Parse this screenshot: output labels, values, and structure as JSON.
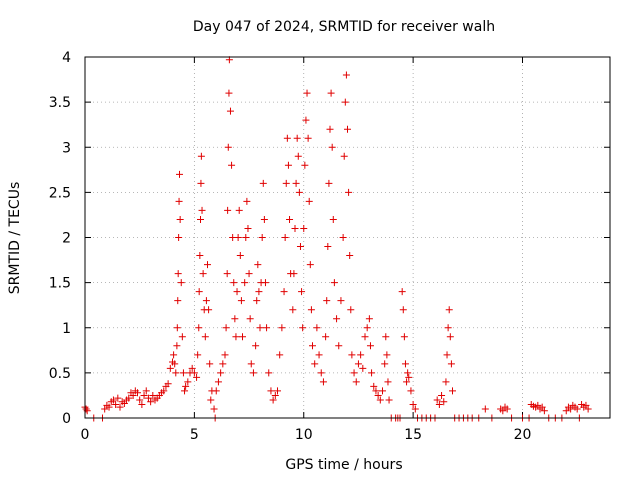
{
  "chart_data": {
    "type": "scatter",
    "title": "Day 047 of 2024, SRMTID for receiver walh",
    "xlabel": "GPS time / hours",
    "ylabel": "SRMTID / TECUs",
    "xlim": [
      0,
      24
    ],
    "ylim": [
      0,
      4
    ],
    "x_ticks": [
      0,
      5,
      10,
      15,
      20
    ],
    "x_tick_labels": [
      "0",
      "5",
      "10",
      "15",
      "20"
    ],
    "y_ticks": [
      0,
      0.5,
      1,
      1.5,
      2,
      2.5,
      3,
      3.5,
      4
    ],
    "y_tick_labels": [
      "0",
      "0.5",
      "1",
      "1.5",
      "2",
      "2.5",
      "3",
      "3.5",
      "4"
    ],
    "grid": true,
    "marker": "+",
    "series": [
      {
        "name": "SRMTID",
        "color": "#e00000",
        "points": [
          [
            0.0,
            0.12
          ],
          [
            0.05,
            0.1
          ],
          [
            0.1,
            0.08
          ],
          [
            0.4,
            0.0
          ],
          [
            0.8,
            0.0
          ],
          [
            0.9,
            0.1
          ],
          [
            1.0,
            0.14
          ],
          [
            1.1,
            0.12
          ],
          [
            1.2,
            0.18
          ],
          [
            1.3,
            0.2
          ],
          [
            1.4,
            0.15
          ],
          [
            1.5,
            0.22
          ],
          [
            1.6,
            0.12
          ],
          [
            1.7,
            0.18
          ],
          [
            1.8,
            0.16
          ],
          [
            1.9,
            0.2
          ],
          [
            2.0,
            0.22
          ],
          [
            2.1,
            0.28
          ],
          [
            2.2,
            0.25
          ],
          [
            2.3,
            0.3
          ],
          [
            2.4,
            0.28
          ],
          [
            2.5,
            0.2
          ],
          [
            2.6,
            0.15
          ],
          [
            2.7,
            0.25
          ],
          [
            2.8,
            0.3
          ],
          [
            2.9,
            0.22
          ],
          [
            3.0,
            0.18
          ],
          [
            3.1,
            0.25
          ],
          [
            3.2,
            0.2
          ],
          [
            3.3,
            0.22
          ],
          [
            3.4,
            0.25
          ],
          [
            3.5,
            0.28
          ],
          [
            3.6,
            0.3
          ],
          [
            3.7,
            0.35
          ],
          [
            3.8,
            0.38
          ],
          [
            3.9,
            0.55
          ],
          [
            4.0,
            0.62
          ],
          [
            4.05,
            0.7
          ],
          [
            4.1,
            0.6
          ],
          [
            4.15,
            0.5
          ],
          [
            4.2,
            0.8
          ],
          [
            4.22,
            1.0
          ],
          [
            4.24,
            1.3
          ],
          [
            4.26,
            1.6
          ],
          [
            4.28,
            2.0
          ],
          [
            4.3,
            2.4
          ],
          [
            4.32,
            2.7
          ],
          [
            4.35,
            2.2
          ],
          [
            4.4,
            1.5
          ],
          [
            4.45,
            0.9
          ],
          [
            4.5,
            0.5
          ],
          [
            4.55,
            0.3
          ],
          [
            4.6,
            0.35
          ],
          [
            4.7,
            0.4
          ],
          [
            4.8,
            0.5
          ],
          [
            4.9,
            0.55
          ],
          [
            5.0,
            0.5
          ],
          [
            5.1,
            0.45
          ],
          [
            5.15,
            0.7
          ],
          [
            5.2,
            1.0
          ],
          [
            5.22,
            1.4
          ],
          [
            5.25,
            1.8
          ],
          [
            5.28,
            2.2
          ],
          [
            5.3,
            2.6
          ],
          [
            5.32,
            2.9
          ],
          [
            5.35,
            2.3
          ],
          [
            5.4,
            1.6
          ],
          [
            5.45,
            1.2
          ],
          [
            5.5,
            0.9
          ],
          [
            5.55,
            1.3
          ],
          [
            5.6,
            1.7
          ],
          [
            5.65,
            1.2
          ],
          [
            5.7,
            0.6
          ],
          [
            5.75,
            0.2
          ],
          [
            5.8,
            0.3
          ],
          [
            5.9,
            0.1
          ],
          [
            5.95,
            0.0
          ],
          [
            6.0,
            0.3
          ],
          [
            6.1,
            0.4
          ],
          [
            6.2,
            0.5
          ],
          [
            6.3,
            0.6
          ],
          [
            6.4,
            0.7
          ],
          [
            6.45,
            1.0
          ],
          [
            6.5,
            1.6
          ],
          [
            6.52,
            2.3
          ],
          [
            6.55,
            3.0
          ],
          [
            6.58,
            3.6
          ],
          [
            6.6,
            3.97
          ],
          [
            6.65,
            3.4
          ],
          [
            6.7,
            2.8
          ],
          [
            6.75,
            2.0
          ],
          [
            6.8,
            1.5
          ],
          [
            6.85,
            1.1
          ],
          [
            6.9,
            0.9
          ],
          [
            6.95,
            1.4
          ],
          [
            7.0,
            2.0
          ],
          [
            7.05,
            2.3
          ],
          [
            7.1,
            1.8
          ],
          [
            7.15,
            1.3
          ],
          [
            7.2,
            0.9
          ],
          [
            7.3,
            1.5
          ],
          [
            7.35,
            2.0
          ],
          [
            7.4,
            2.4
          ],
          [
            7.45,
            2.1
          ],
          [
            7.5,
            1.6
          ],
          [
            7.55,
            1.1
          ],
          [
            7.6,
            0.6
          ],
          [
            7.7,
            0.5
          ],
          [
            7.8,
            0.8
          ],
          [
            7.85,
            1.3
          ],
          [
            7.9,
            1.7
          ],
          [
            7.95,
            1.4
          ],
          [
            8.0,
            1.0
          ],
          [
            8.05,
            1.5
          ],
          [
            8.1,
            2.0
          ],
          [
            8.15,
            2.6
          ],
          [
            8.2,
            2.2
          ],
          [
            8.25,
            1.5
          ],
          [
            8.3,
            1.0
          ],
          [
            8.4,
            0.5
          ],
          [
            8.5,
            0.3
          ],
          [
            8.6,
            0.2
          ],
          [
            8.7,
            0.25
          ],
          [
            8.8,
            0.3
          ],
          [
            8.9,
            0.7
          ],
          [
            9.0,
            1.0
          ],
          [
            9.1,
            1.4
          ],
          [
            9.15,
            2.0
          ],
          [
            9.2,
            2.6
          ],
          [
            9.25,
            3.1
          ],
          [
            9.3,
            2.8
          ],
          [
            9.35,
            2.2
          ],
          [
            9.4,
            1.6
          ],
          [
            9.5,
            1.2
          ],
          [
            9.55,
            1.6
          ],
          [
            9.6,
            2.1
          ],
          [
            9.65,
            2.6
          ],
          [
            9.7,
            3.1
          ],
          [
            9.75,
            2.9
          ],
          [
            9.8,
            2.5
          ],
          [
            9.85,
            1.9
          ],
          [
            9.9,
            1.4
          ],
          [
            9.95,
            1.0
          ],
          [
            10.0,
            2.1
          ],
          [
            10.05,
            2.8
          ],
          [
            10.1,
            3.3
          ],
          [
            10.15,
            3.6
          ],
          [
            10.2,
            3.1
          ],
          [
            10.25,
            2.4
          ],
          [
            10.3,
            1.7
          ],
          [
            10.35,
            1.2
          ],
          [
            10.4,
            0.8
          ],
          [
            10.5,
            0.6
          ],
          [
            10.6,
            1.0
          ],
          [
            10.7,
            0.7
          ],
          [
            10.8,
            0.5
          ],
          [
            10.9,
            0.4
          ],
          [
            11.0,
            0.9
          ],
          [
            11.05,
            1.3
          ],
          [
            11.1,
            1.9
          ],
          [
            11.15,
            2.6
          ],
          [
            11.2,
            3.2
          ],
          [
            11.25,
            3.6
          ],
          [
            11.3,
            3.0
          ],
          [
            11.35,
            2.2
          ],
          [
            11.4,
            1.5
          ],
          [
            11.5,
            1.1
          ],
          [
            11.6,
            0.8
          ],
          [
            11.7,
            1.3
          ],
          [
            11.8,
            2.0
          ],
          [
            11.85,
            2.9
          ],
          [
            11.9,
            3.5
          ],
          [
            11.95,
            3.8
          ],
          [
            12.0,
            3.2
          ],
          [
            12.05,
            2.5
          ],
          [
            12.1,
            1.8
          ],
          [
            12.15,
            1.2
          ],
          [
            12.2,
            0.7
          ],
          [
            12.3,
            0.5
          ],
          [
            12.4,
            0.4
          ],
          [
            12.5,
            0.6
          ],
          [
            12.6,
            0.7
          ],
          [
            12.7,
            0.55
          ],
          [
            12.8,
            0.9
          ],
          [
            12.9,
            1.0
          ],
          [
            13.0,
            1.1
          ],
          [
            13.05,
            0.8
          ],
          [
            13.1,
            0.5
          ],
          [
            13.2,
            0.35
          ],
          [
            13.3,
            0.3
          ],
          [
            13.4,
            0.25
          ],
          [
            13.5,
            0.2
          ],
          [
            13.6,
            0.3
          ],
          [
            13.7,
            0.6
          ],
          [
            13.75,
            0.9
          ],
          [
            13.8,
            0.7
          ],
          [
            13.85,
            0.4
          ],
          [
            13.9,
            0.2
          ],
          [
            14.0,
            0.0
          ],
          [
            14.2,
            0.0
          ],
          [
            14.3,
            0.0
          ],
          [
            14.4,
            0.0
          ],
          [
            14.5,
            1.4
          ],
          [
            14.55,
            1.2
          ],
          [
            14.6,
            0.9
          ],
          [
            14.65,
            0.6
          ],
          [
            14.7,
            0.4
          ],
          [
            14.75,
            0.5
          ],
          [
            14.8,
            0.45
          ],
          [
            14.9,
            0.3
          ],
          [
            15.0,
            0.15
          ],
          [
            15.1,
            0.1
          ],
          [
            15.2,
            0.0
          ],
          [
            15.4,
            0.0
          ],
          [
            15.6,
            0.0
          ],
          [
            15.8,
            0.0
          ],
          [
            16.0,
            0.0
          ],
          [
            16.1,
            0.2
          ],
          [
            16.2,
            0.15
          ],
          [
            16.3,
            0.25
          ],
          [
            16.4,
            0.18
          ],
          [
            16.5,
            0.4
          ],
          [
            16.55,
            0.7
          ],
          [
            16.6,
            1.0
          ],
          [
            16.65,
            1.2
          ],
          [
            16.7,
            0.9
          ],
          [
            16.75,
            0.6
          ],
          [
            16.8,
            0.3
          ],
          [
            16.9,
            0.0
          ],
          [
            17.1,
            0.0
          ],
          [
            17.3,
            0.0
          ],
          [
            17.5,
            0.0
          ],
          [
            17.7,
            0.0
          ],
          [
            18.0,
            0.0
          ],
          [
            18.3,
            0.1
          ],
          [
            18.6,
            0.0
          ],
          [
            19.0,
            0.1
          ],
          [
            19.1,
            0.08
          ],
          [
            19.2,
            0.12
          ],
          [
            19.3,
            0.1
          ],
          [
            19.5,
            0.0
          ],
          [
            20.0,
            0.0
          ],
          [
            20.3,
            0.0
          ],
          [
            20.4,
            0.15
          ],
          [
            20.5,
            0.13
          ],
          [
            20.6,
            0.12
          ],
          [
            20.7,
            0.14
          ],
          [
            20.8,
            0.1
          ],
          [
            20.9,
            0.12
          ],
          [
            21.0,
            0.08
          ],
          [
            21.2,
            0.0
          ],
          [
            21.5,
            0.0
          ],
          [
            21.8,
            0.0
          ],
          [
            22.0,
            0.08
          ],
          [
            22.1,
            0.12
          ],
          [
            22.2,
            0.1
          ],
          [
            22.3,
            0.14
          ],
          [
            22.4,
            0.12
          ],
          [
            22.5,
            0.1
          ],
          [
            22.6,
            0.0
          ],
          [
            22.7,
            0.15
          ],
          [
            22.8,
            0.12
          ],
          [
            22.9,
            0.14
          ],
          [
            23.0,
            0.1
          ]
        ]
      }
    ]
  }
}
